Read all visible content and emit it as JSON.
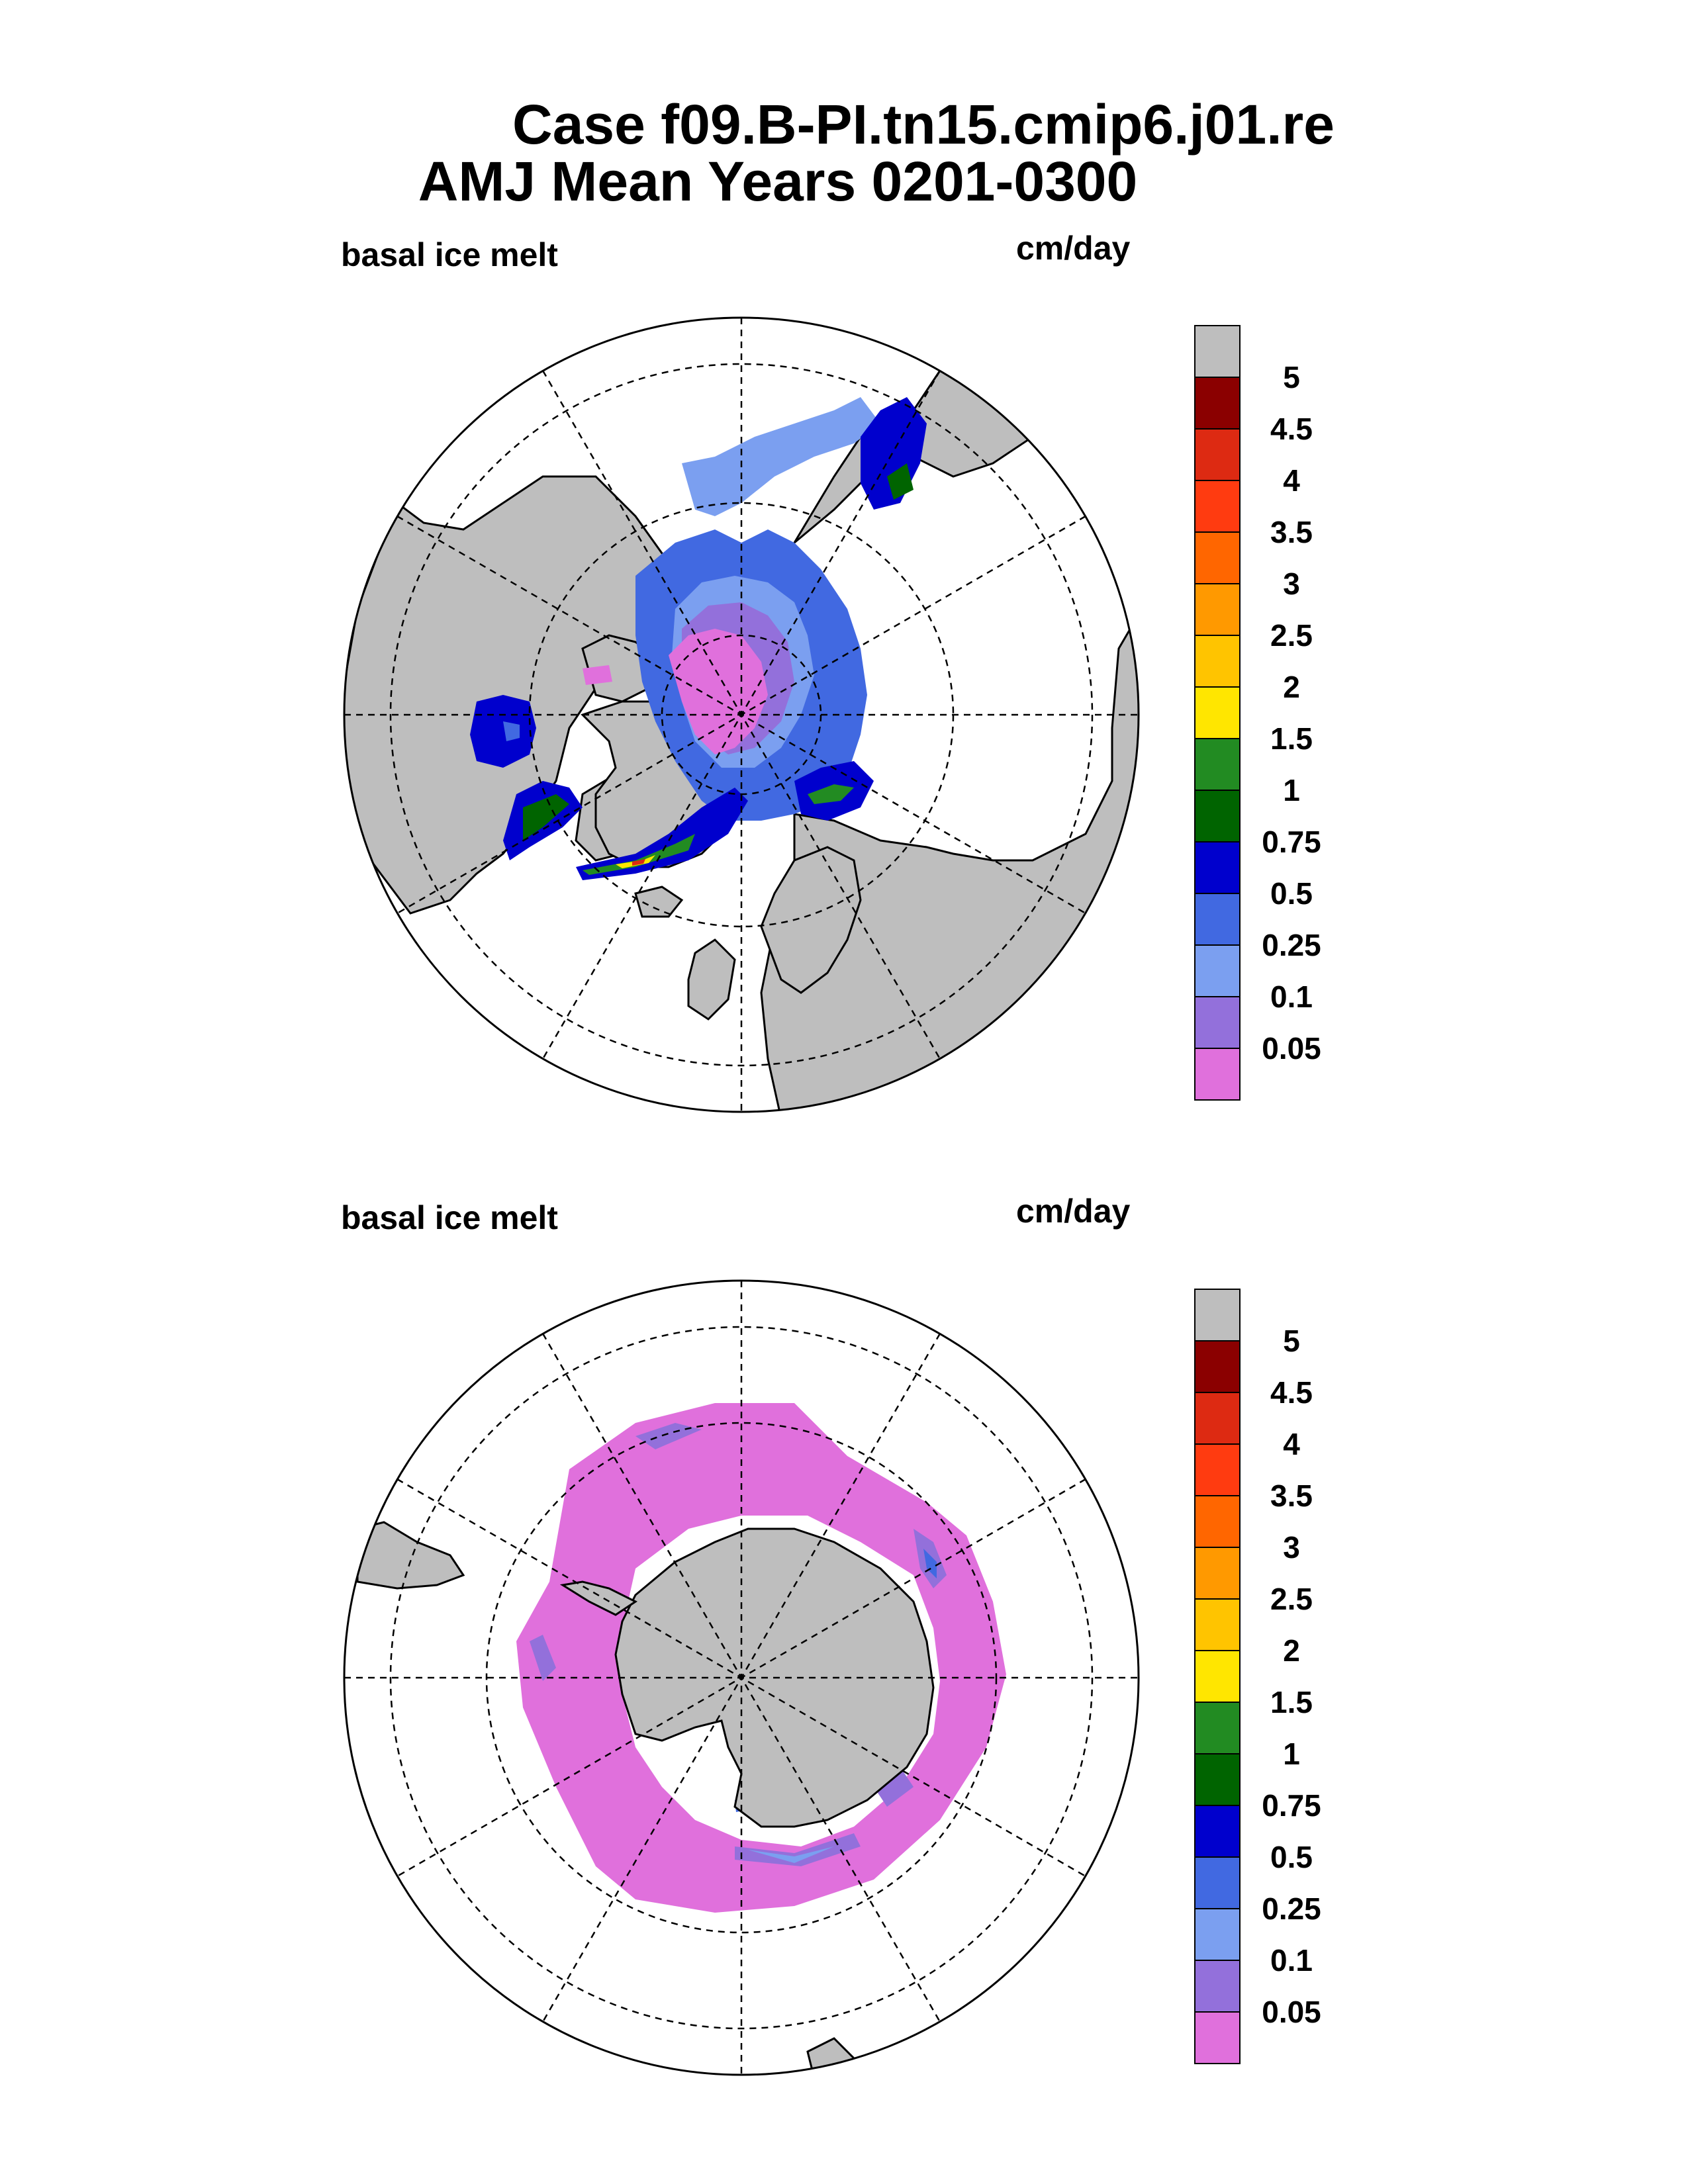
{
  "title_line1": "Case f09.B-PI.tn15.cmip6.j01.re",
  "title_line2": "AMJ Mean   Years 0201-0300",
  "colors": {
    "land": "#bebebe",
    "ocean": "#ffffff",
    "levels": [
      "#e070dc",
      "#9370db",
      "#7b9ff0",
      "#4169e1",
      "#0000cd",
      "#006400",
      "#228b22",
      "#ffe600",
      "#ffc400",
      "#ff9900",
      "#ff6600",
      "#ff3b10",
      "#dd2a12",
      "#8b0000",
      "#bebebe"
    ]
  },
  "chart_data": [
    {
      "type": "heatmap",
      "projection": "polar stereographic",
      "hemisphere": "north",
      "label_left": "basal ice melt",
      "label_right": "cm/day",
      "colorbar_ticks": [
        "5",
        "4.5",
        "4",
        "3.5",
        "3",
        "2.5",
        "2",
        "1.5",
        "1",
        "0.75",
        "0.5",
        "0.25",
        "0.1",
        "0.05"
      ],
      "levels": [
        0.05,
        0.1,
        0.25,
        0.5,
        0.75,
        1,
        1.5,
        2,
        2.5,
        3,
        3.5,
        4,
        4.5,
        5
      ],
      "grid": true
    },
    {
      "type": "heatmap",
      "projection": "polar stereographic",
      "hemisphere": "south",
      "label_left": "basal ice melt",
      "label_right": "cm/day",
      "colorbar_ticks": [
        "5",
        "4.5",
        "4",
        "3.5",
        "3",
        "2.5",
        "2",
        "1.5",
        "1",
        "0.75",
        "0.5",
        "0.25",
        "0.1",
        "0.05"
      ],
      "levels": [
        0.05,
        0.1,
        0.25,
        0.5,
        0.75,
        1,
        1.5,
        2,
        2.5,
        3,
        3.5,
        4,
        4.5,
        5
      ],
      "grid": true
    }
  ]
}
